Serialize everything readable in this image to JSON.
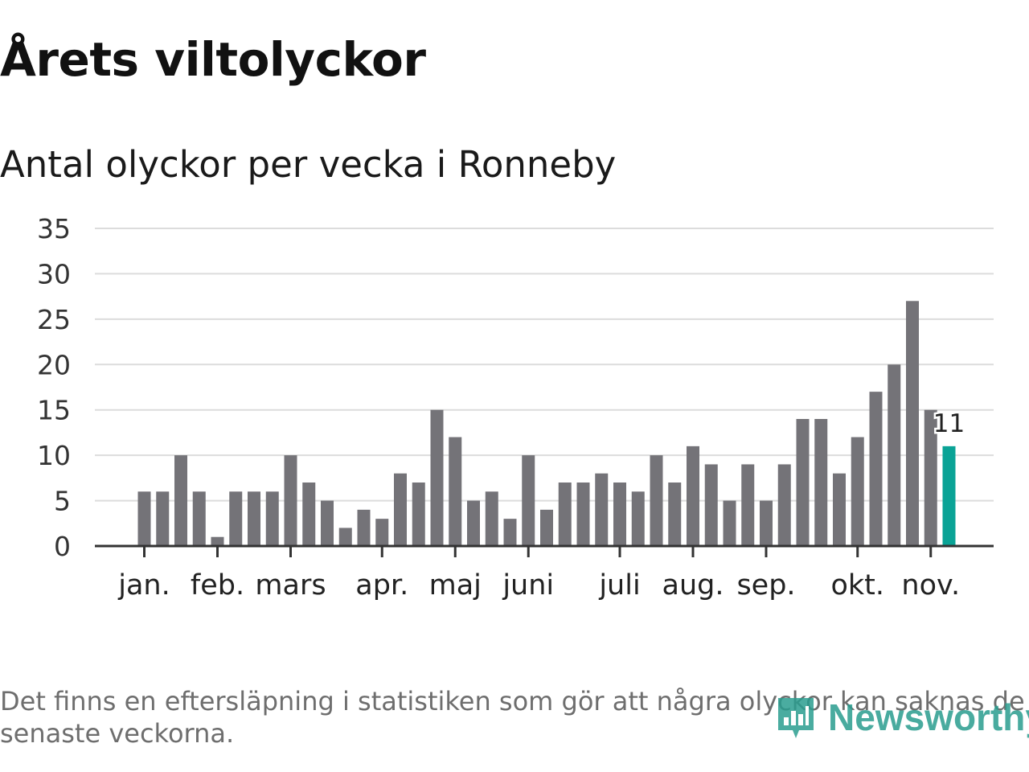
{
  "title": "Årets viltolyckor",
  "subtitle": "Antal olyckor per vecka i Ronneby",
  "footnote": "Det finns en eftersläpning i statistiken som gör att några olyckor kan saknas de senaste veckorna.",
  "brand": {
    "name": "Newsworthy",
    "icon": "bar-chart-logo-icon",
    "color": "#2a9d8f"
  },
  "colors": {
    "bar": "#747378",
    "highlight": "#0aa396",
    "grid": "#dcdcdc",
    "axis": "#333333"
  },
  "chart_data": {
    "type": "bar",
    "title": "Antal olyckor per vecka i Ronneby",
    "xlabel": "",
    "ylabel": "",
    "ylim": [
      0,
      35
    ],
    "yticks": [
      "0",
      "5",
      "10",
      "15",
      "20",
      "25",
      "30",
      "35"
    ],
    "grid": true,
    "values": [
      6,
      6,
      10,
      6,
      1,
      6,
      6,
      6,
      10,
      7,
      5,
      2,
      4,
      3,
      8,
      7,
      15,
      12,
      5,
      6,
      3,
      10,
      4,
      7,
      7,
      8,
      7,
      6,
      10,
      7,
      11,
      9,
      5,
      9,
      5,
      9,
      14,
      14,
      8,
      12,
      17,
      20,
      27,
      15,
      11
    ],
    "month_labels": [
      {
        "label": "jan.",
        "week": 1
      },
      {
        "label": "feb.",
        "week": 5
      },
      {
        "label": "mars",
        "week": 9
      },
      {
        "label": "apr.",
        "week": 14
      },
      {
        "label": "maj",
        "week": 18
      },
      {
        "label": "juni",
        "week": 22
      },
      {
        "label": "juli",
        "week": 27
      },
      {
        "label": "aug.",
        "week": 31
      },
      {
        "label": "sep.",
        "week": 35
      },
      {
        "label": "okt.",
        "week": 40
      },
      {
        "label": "nov.",
        "week": 44
      }
    ],
    "highlight_last": true,
    "annotation": {
      "label": "11",
      "week": 45
    }
  }
}
